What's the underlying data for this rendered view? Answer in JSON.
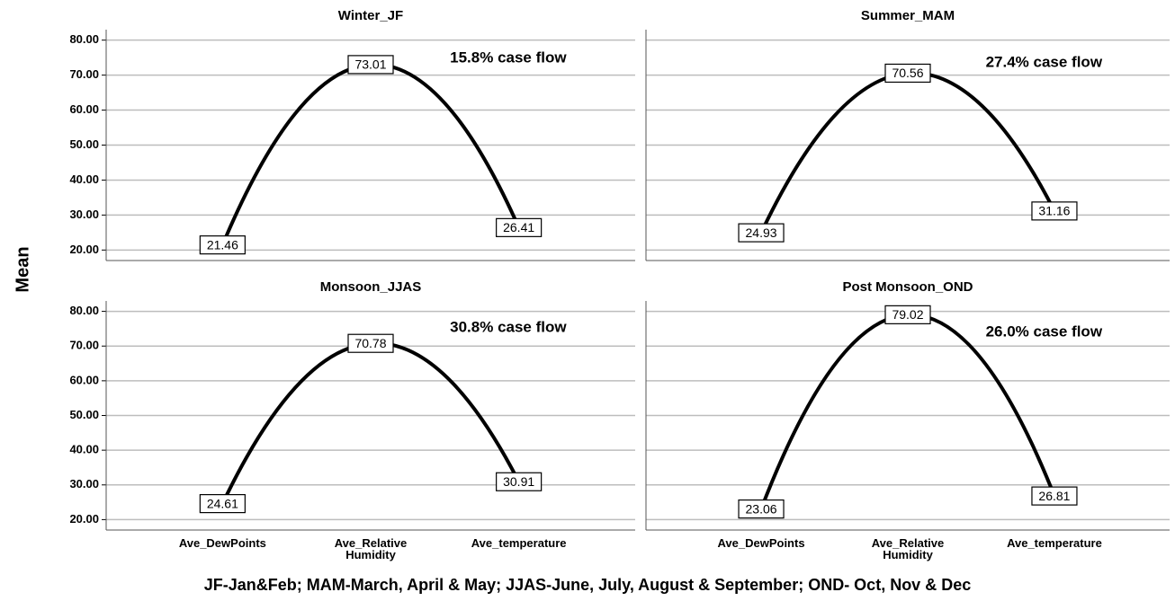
{
  "y_label": "Mean",
  "footnote": "JF-Jan&Feb; MAM-March, April & May; JJAS-June, July, August & September; OND- Oct, Nov & Dec",
  "chart_data": [
    {
      "type": "line",
      "title": "Winter_JF",
      "annotation": "15.8% case flow",
      "color": "#000000",
      "values": [
        21.46,
        73.01,
        26.41
      ],
      "ylim": [
        17,
        83
      ],
      "yticks": [
        {
          "value": 20,
          "label": "20.00"
        },
        {
          "value": 30,
          "label": "30.00"
        },
        {
          "value": 40,
          "label": "40.00"
        },
        {
          "value": 50,
          "label": "50.00"
        },
        {
          "value": 60,
          "label": "60.00"
        },
        {
          "value": 70,
          "label": "70.00"
        },
        {
          "value": 80,
          "label": "80.00"
        }
      ],
      "grid": true
    },
    {
      "type": "line",
      "title": "Summer_MAM",
      "annotation": "27.4% case flow",
      "color": "#000000",
      "values": [
        24.93,
        70.56,
        31.16
      ],
      "ylim": [
        17,
        83
      ],
      "yticks": [
        20,
        30,
        40,
        50,
        60,
        70,
        80
      ],
      "grid": true
    },
    {
      "type": "line",
      "title": "Monsoon_JJAS",
      "annotation": "30.8% case flow",
      "color": "#000000",
      "categories": [
        "Ave_DewPoints",
        "Ave_Relative Humidity",
        "Ave_temperature"
      ],
      "values": [
        24.61,
        70.78,
        30.91
      ],
      "ylim": [
        17,
        83
      ],
      "yticks": [
        {
          "value": 20,
          "label": "20.00"
        },
        {
          "value": 30,
          "label": "30.00"
        },
        {
          "value": 40,
          "label": "40.00"
        },
        {
          "value": 50,
          "label": "50.00"
        },
        {
          "value": 60,
          "label": "60.00"
        },
        {
          "value": 70,
          "label": "70.00"
        },
        {
          "value": 80,
          "label": "80.00"
        }
      ],
      "grid": true
    },
    {
      "type": "line",
      "title": "Post Monsoon_OND",
      "annotation": "26.0% case flow",
      "color": "#000000",
      "categories": [
        "Ave_DewPoints",
        "Ave_Relative Humidity",
        "Ave_temperature"
      ],
      "values": [
        23.06,
        79.02,
        26.81
      ],
      "ylim": [
        17,
        83
      ],
      "yticks": [
        20,
        30,
        40,
        50,
        60,
        70,
        80
      ],
      "grid": true
    }
  ]
}
